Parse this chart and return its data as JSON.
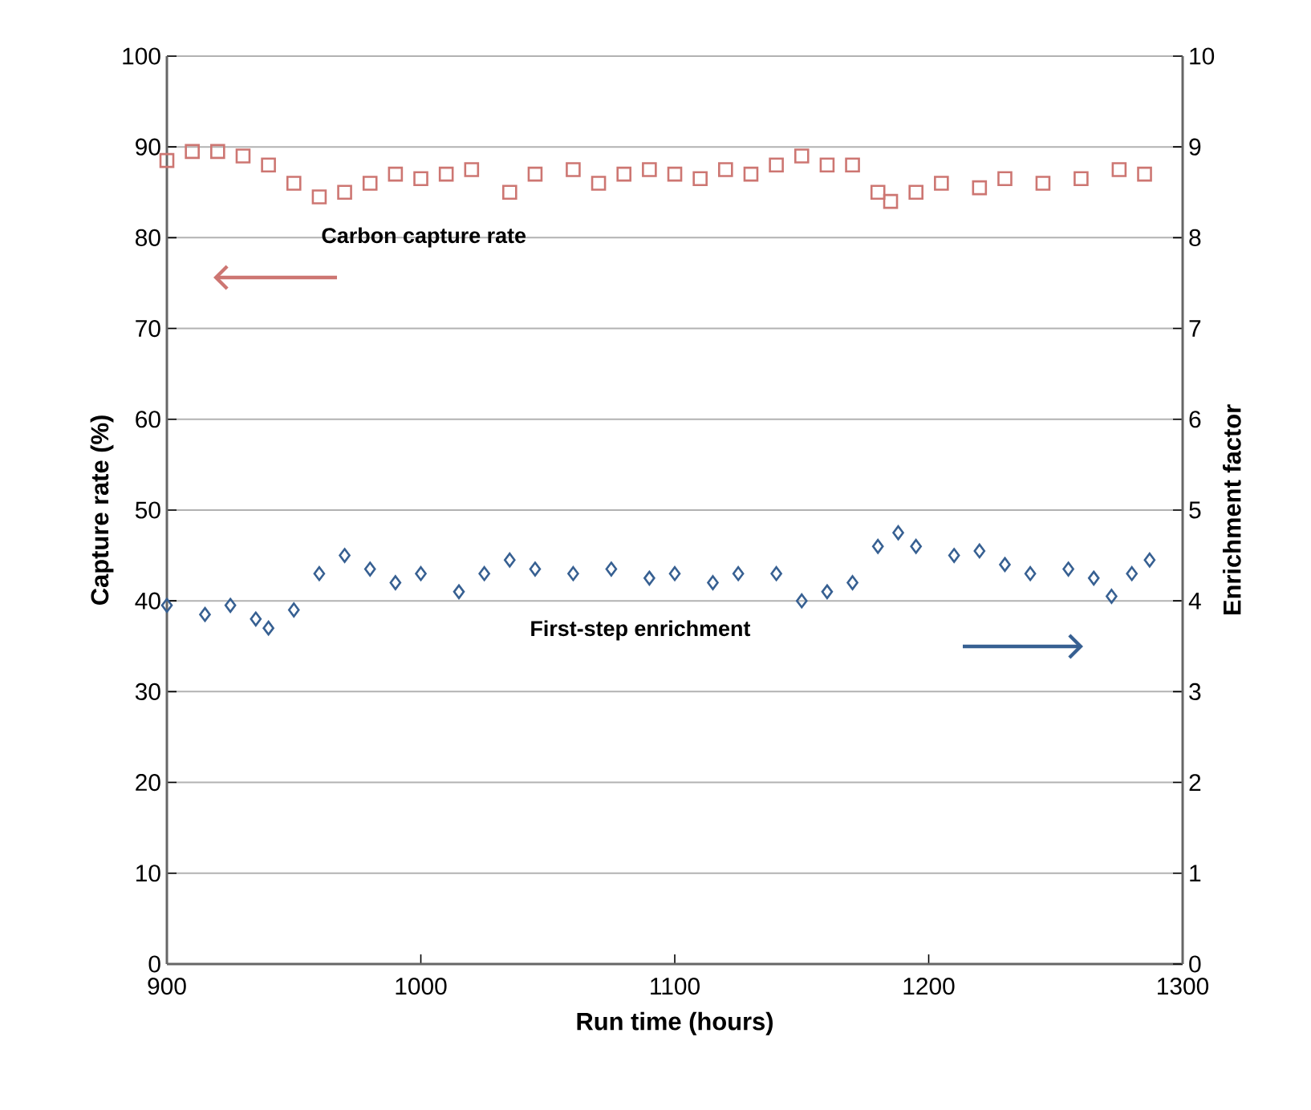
{
  "chart_data": {
    "type": "scatter",
    "xlabel": "Run time (hours)",
    "ylabel": "Capture rate (%)",
    "y2label": "Enrichment factor",
    "xlim": [
      900,
      1300
    ],
    "xticks": [
      900,
      1000,
      1100,
      1200,
      1300
    ],
    "ylim": [
      0,
      100
    ],
    "yticks": [
      0,
      10,
      20,
      30,
      40,
      50,
      60,
      70,
      80,
      90,
      100
    ],
    "y2lim": [
      0,
      10
    ],
    "y2ticks": [
      0,
      1,
      2,
      3,
      4,
      5,
      6,
      7,
      8,
      9,
      10
    ],
    "grid": "y",
    "series": [
      {
        "name": "Carbon capture rate",
        "color": "#cd7672",
        "marker": "square",
        "x": [
          900,
          910,
          920,
          930,
          940,
          950,
          960,
          970,
          980,
          990,
          1000,
          1010,
          1020,
          1035,
          1045,
          1060,
          1070,
          1080,
          1090,
          1100,
          1110,
          1120,
          1130,
          1140,
          1150,
          1160,
          1170,
          1180,
          1185,
          1195,
          1205,
          1220,
          1230,
          1245,
          1260,
          1275,
          1285
        ],
        "values": [
          88.5,
          89.5,
          89.5,
          89,
          88,
          86,
          84.5,
          85,
          86,
          87,
          86.5,
          87,
          87.5,
          85,
          87,
          87.5,
          86,
          87,
          87.5,
          87,
          86.5,
          87.5,
          87,
          88,
          89,
          88,
          88,
          85,
          84,
          85,
          86,
          85.5,
          86.5,
          86,
          86.5,
          87.5,
          87
        ]
      },
      {
        "name": "First-step enrichment",
        "color": "#376092",
        "marker": "diamond",
        "axis": "y2",
        "x": [
          900,
          915,
          925,
          935,
          940,
          950,
          960,
          970,
          980,
          990,
          1000,
          1015,
          1025,
          1035,
          1045,
          1060,
          1075,
          1090,
          1100,
          1115,
          1125,
          1140,
          1150,
          1160,
          1170,
          1180,
          1188,
          1195,
          1210,
          1220,
          1230,
          1240,
          1255,
          1265,
          1272,
          1280,
          1287
        ],
        "values": [
          3.95,
          3.85,
          3.95,
          3.8,
          3.7,
          3.9,
          4.3,
          4.5,
          4.35,
          4.2,
          4.3,
          4.1,
          4.3,
          4.45,
          4.35,
          4.3,
          4.35,
          4.25,
          4.3,
          4.2,
          4.3,
          4.3,
          4.0,
          4.1,
          4.2,
          4.6,
          4.75,
          4.6,
          4.5,
          4.55,
          4.4,
          4.3,
          4.35,
          4.25,
          4.05,
          4.3,
          4.45
        ]
      }
    ]
  }
}
